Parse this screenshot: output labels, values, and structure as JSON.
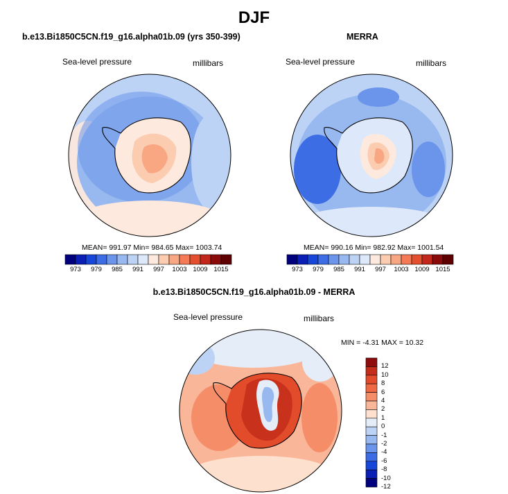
{
  "figure": {
    "title": "DJF",
    "left_panel": {
      "title": "b.e13.Bi1850C5CN.f19_g16.alpha01b.09 (yrs 350-399)",
      "variable": "Sea-level pressure",
      "units": "millibars",
      "stats": "MEAN= 991.97  Min= 984.65  Max= 1003.74"
    },
    "right_panel": {
      "title": "MERRA",
      "variable": "Sea-level pressure",
      "units": "millibars",
      "stats": "MEAN= 990.16  Min= 982.92  Max= 1001.54"
    },
    "diff_panel": {
      "title": "b.e13.Bi1850C5CN.f19_g16.alpha01b.09 - MERRA",
      "variable": "Sea-level pressure",
      "units": "millibars",
      "stats": "MIN =  -4.31 MAX =  10.32"
    },
    "colors": {
      "abs_scale": [
        "#00007f",
        "#0a1fb4",
        "#1747d9",
        "#3d6de5",
        "#6b95ea",
        "#98b8f0",
        "#bdd3f6",
        "#dde9fa",
        "#fde9dd",
        "#fcccb1",
        "#f9a682",
        "#f47b55",
        "#e4502f",
        "#c1271a",
        "#8a0a0a",
        "#5f0000"
      ],
      "diff_scale": [
        "#00007f",
        "#0a1fb4",
        "#1747d9",
        "#3d6de5",
        "#6b95ea",
        "#98b8f0",
        "#bdd3f6",
        "#e4edf8",
        "#fde0cd",
        "#f9b699",
        "#f58e68",
        "#ef6a42",
        "#e24c2a",
        "#c32d1a",
        "#8f0c0c"
      ],
      "land_outline": "#000000"
    }
  },
  "chart_data": [
    {
      "type": "heatmap",
      "title": "b.e13.Bi1850C5CN.f19_g16.alpha01b.09 (yrs 350-399)",
      "projection": "south-polar stereographic",
      "variable": "Sea-level pressure",
      "units": "millibars",
      "mean": 991.97,
      "min": 984.65,
      "max": 1003.74,
      "contour_levels": [
        973,
        976,
        979,
        982,
        985,
        988,
        991,
        994,
        997,
        1000,
        1003,
        1006,
        1009,
        1012,
        1015
      ],
      "tick_labels": [
        "973",
        "979",
        "985",
        "991",
        "997",
        "1003",
        "1009",
        "1015"
      ],
      "colorbar_orientation": "horizontal"
    },
    {
      "type": "heatmap",
      "title": "MERRA",
      "projection": "south-polar stereographic",
      "variable": "Sea-level pressure",
      "units": "millibars",
      "mean": 990.16,
      "min": 982.92,
      "max": 1001.54,
      "contour_levels": [
        973,
        976,
        979,
        982,
        985,
        988,
        991,
        994,
        997,
        1000,
        1003,
        1006,
        1009,
        1012,
        1015
      ],
      "tick_labels": [
        "973",
        "979",
        "985",
        "991",
        "997",
        "1003",
        "1009",
        "1015"
      ],
      "colorbar_orientation": "horizontal"
    },
    {
      "type": "heatmap",
      "title": "b.e13.Bi1850C5CN.f19_g16.alpha01b.09 - MERRA",
      "projection": "south-polar stereographic",
      "variable": "Sea-level pressure",
      "units": "millibars",
      "min": -4.31,
      "max": 10.32,
      "contour_levels": [
        -12,
        -10,
        -8,
        -6,
        -4,
        -2,
        -1,
        0,
        1,
        2,
        4,
        6,
        8,
        10,
        12
      ],
      "tick_labels": [
        "12",
        "10",
        "8",
        "6",
        "4",
        "2",
        "1",
        "0",
        "-1",
        "-2",
        "-4",
        "-6",
        "-8",
        "-10",
        "-12"
      ],
      "colorbar_orientation": "vertical"
    }
  ]
}
